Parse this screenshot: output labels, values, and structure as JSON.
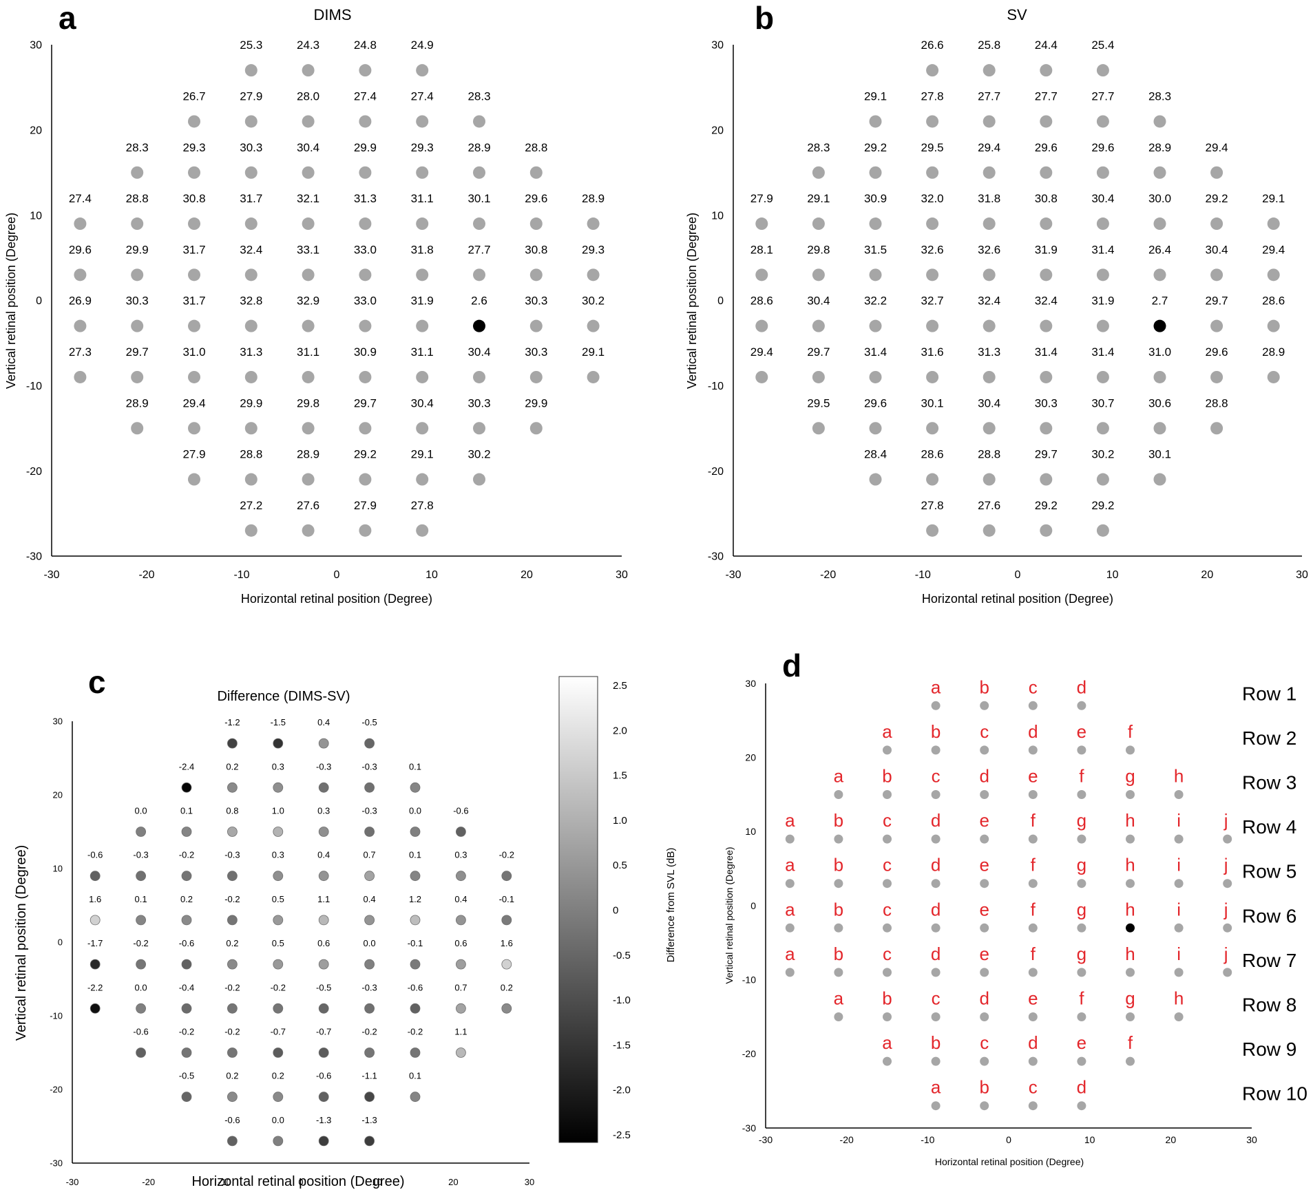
{
  "colors": {
    "dot": "#a6a6a6",
    "blind_spot": "#000000",
    "axis": "#000000",
    "row_letter": "#e3262b"
  },
  "chart_data": [
    {
      "panel": "a",
      "type": "scatter",
      "title": "DIMS",
      "xlabel": "Horizontal retinal position (Degree)",
      "ylabel": "Vertical retinal position (Degree)",
      "xlim": [
        -30,
        30
      ],
      "ylim": [
        -30,
        30
      ],
      "xticks": [
        "-30",
        "-20",
        "-10",
        "0",
        "10",
        "20",
        "30"
      ],
      "yticks": [
        "30",
        "20",
        "10",
        "0",
        "-10",
        "-20",
        "-30"
      ],
      "blind_spot": [
        15,
        -3
      ],
      "rows": [
        {
          "y": 27,
          "x": [
            -9,
            -3,
            3,
            9
          ],
          "values": [
            "25.3",
            "24.3",
            "24.8",
            "24.9"
          ]
        },
        {
          "y": 21,
          "x": [
            -15,
            -9,
            -3,
            3,
            9,
            15
          ],
          "values": [
            "26.7",
            "27.9",
            "28.0",
            "27.4",
            "27.4",
            "28.3"
          ]
        },
        {
          "y": 15,
          "x": [
            -21,
            -15,
            -9,
            -3,
            3,
            9,
            15,
            21
          ],
          "values": [
            "28.3",
            "29.3",
            "30.3",
            "30.4",
            "29.9",
            "29.3",
            "28.9",
            "28.8"
          ]
        },
        {
          "y": 9,
          "x": [
            -27,
            -21,
            -15,
            -9,
            -3,
            3,
            9,
            15,
            21,
            27
          ],
          "values": [
            "27.4",
            "28.8",
            "30.8",
            "31.7",
            "32.1",
            "31.3",
            "31.1",
            "30.1",
            "29.6",
            "28.9"
          ]
        },
        {
          "y": 3,
          "x": [
            -27,
            -21,
            -15,
            -9,
            -3,
            3,
            9,
            15,
            21,
            27
          ],
          "values": [
            "29.6",
            "29.9",
            "31.7",
            "32.4",
            "33.1",
            "33.0",
            "31.8",
            "27.7",
            "30.8",
            "29.3"
          ]
        },
        {
          "y": -3,
          "x": [
            -27,
            -21,
            -15,
            -9,
            -3,
            3,
            9,
            15,
            21,
            27
          ],
          "values": [
            "26.9",
            "30.3",
            "31.7",
            "32.8",
            "32.9",
            "33.0",
            "31.9",
            "2.6",
            "30.3",
            "30.2"
          ]
        },
        {
          "y": -9,
          "x": [
            -27,
            -21,
            -15,
            -9,
            -3,
            3,
            9,
            15,
            21,
            27
          ],
          "values": [
            "27.3",
            "29.7",
            "31.0",
            "31.3",
            "31.1",
            "30.9",
            "31.1",
            "30.4",
            "30.3",
            "29.1"
          ]
        },
        {
          "y": -15,
          "x": [
            -21,
            -15,
            -9,
            -3,
            3,
            9,
            15,
            21
          ],
          "values": [
            "28.9",
            "29.4",
            "29.9",
            "29.8",
            "29.7",
            "30.4",
            "30.3",
            "29.9"
          ]
        },
        {
          "y": -21,
          "x": [
            -15,
            -9,
            -3,
            3,
            9,
            15
          ],
          "values": [
            "27.9",
            "28.8",
            "28.9",
            "29.2",
            "29.1",
            "30.2"
          ]
        },
        {
          "y": -27,
          "x": [
            -9,
            -3,
            3,
            9
          ],
          "values": [
            "27.2",
            "27.6",
            "27.9",
            "27.8"
          ]
        }
      ]
    },
    {
      "panel": "b",
      "type": "scatter",
      "title": "SV",
      "xlabel": "Horizontal retinal position (Degree)",
      "ylabel": "Vertical retinal position (Degree)",
      "xlim": [
        -30,
        30
      ],
      "ylim": [
        -30,
        30
      ],
      "xticks": [
        "-30",
        "-20",
        "-10",
        "0",
        "10",
        "20",
        "30"
      ],
      "yticks": [
        "30",
        "20",
        "10",
        "0",
        "-10",
        "-20",
        "-30"
      ],
      "blind_spot": [
        15,
        -3
      ],
      "rows": [
        {
          "y": 27,
          "x": [
            -9,
            -3,
            3,
            9
          ],
          "values": [
            "26.6",
            "25.8",
            "24.4",
            "25.4"
          ]
        },
        {
          "y": 21,
          "x": [
            -15,
            -9,
            -3,
            3,
            9,
            15
          ],
          "values": [
            "29.1",
            "27.8",
            "27.7",
            "27.7",
            "27.7",
            "28.3"
          ]
        },
        {
          "y": 15,
          "x": [
            -21,
            -15,
            -9,
            -3,
            3,
            9,
            15,
            21
          ],
          "values": [
            "28.3",
            "29.2",
            "29.5",
            "29.4",
            "29.6",
            "29.6",
            "28.9",
            "29.4"
          ]
        },
        {
          "y": 9,
          "x": [
            -27,
            -21,
            -15,
            -9,
            -3,
            3,
            9,
            15,
            21,
            27
          ],
          "values": [
            "27.9",
            "29.1",
            "30.9",
            "32.0",
            "31.8",
            "30.8",
            "30.4",
            "30.0",
            "29.2",
            "29.1"
          ]
        },
        {
          "y": 3,
          "x": [
            -27,
            -21,
            -15,
            -9,
            -3,
            3,
            9,
            15,
            21,
            27
          ],
          "values": [
            "28.1",
            "29.8",
            "31.5",
            "32.6",
            "32.6",
            "31.9",
            "31.4",
            "26.4",
            "30.4",
            "29.4"
          ]
        },
        {
          "y": -3,
          "x": [
            -27,
            -21,
            -15,
            -9,
            -3,
            3,
            9,
            15,
            21,
            27
          ],
          "values": [
            "28.6",
            "30.4",
            "32.2",
            "32.7",
            "32.4",
            "32.4",
            "31.9",
            "2.7",
            "29.7",
            "28.6"
          ]
        },
        {
          "y": -9,
          "x": [
            -27,
            -21,
            -15,
            -9,
            -3,
            3,
            9,
            15,
            21,
            27
          ],
          "values": [
            "29.4",
            "29.7",
            "31.4",
            "31.6",
            "31.3",
            "31.4",
            "31.4",
            "31.0",
            "29.6",
            "28.9"
          ]
        },
        {
          "y": -15,
          "x": [
            -21,
            -15,
            -9,
            -3,
            3,
            9,
            15,
            21
          ],
          "values": [
            "29.5",
            "29.6",
            "30.1",
            "30.4",
            "30.3",
            "30.7",
            "30.6",
            "28.8"
          ]
        },
        {
          "y": -21,
          "x": [
            -15,
            -9,
            -3,
            3,
            9,
            15
          ],
          "values": [
            "28.4",
            "28.6",
            "28.8",
            "29.7",
            "30.2",
            "30.1"
          ]
        },
        {
          "y": -27,
          "x": [
            -9,
            -3,
            3,
            9
          ],
          "values": [
            "27.8",
            "27.6",
            "29.2",
            "29.2"
          ]
        }
      ]
    },
    {
      "panel": "c",
      "type": "heatmap",
      "title": "Difference (DIMS-SV)",
      "xlabel": "Horizontal retinal position (Degree)",
      "ylabel": "Vertical retinal position (Degree)",
      "xlim": [
        -30,
        30
      ],
      "ylim": [
        -30,
        30
      ],
      "xticks": [
        "-30",
        "-20",
        "-10",
        "0",
        "10",
        "20",
        "30"
      ],
      "yticks": [
        "30",
        "20",
        "10",
        "0",
        "-10",
        "-20",
        "-30"
      ],
      "colorbar_label": "Difference from SVL (dB)",
      "colorbar_range": [
        -2.5,
        2.5
      ],
      "colorbar_ticks": [
        "2.5",
        "2.0",
        "1.5",
        "1.0",
        "0.5",
        "0",
        "-0.5",
        "-1.0",
        "-1.5",
        "-2.0",
        "-2.5"
      ],
      "rows": [
        {
          "y": 27,
          "x": [
            -9,
            -3,
            3,
            9
          ],
          "values": [
            "-1.2",
            "-1.5",
            "0.4",
            "-0.5"
          ]
        },
        {
          "y": 21,
          "x": [
            -15,
            -9,
            -3,
            3,
            9,
            15
          ],
          "values": [
            "-2.4",
            "0.2",
            "0.3",
            "-0.3",
            "-0.3",
            "0.1"
          ]
        },
        {
          "y": 15,
          "x": [
            -21,
            -15,
            -9,
            -3,
            3,
            9,
            15,
            21
          ],
          "values": [
            "0.0",
            "0.1",
            "0.8",
            "1.0",
            "0.3",
            "-0.3",
            "0.0",
            "-0.6"
          ]
        },
        {
          "y": 9,
          "x": [
            -27,
            -21,
            -15,
            -9,
            -3,
            3,
            9,
            15,
            21,
            27
          ],
          "values": [
            "-0.6",
            "-0.3",
            "-0.2",
            "-0.3",
            "0.3",
            "0.4",
            "0.7",
            "0.1",
            "0.3",
            "-0.2"
          ]
        },
        {
          "y": 3,
          "x": [
            -27,
            -21,
            -15,
            -9,
            -3,
            3,
            9,
            15,
            21,
            27
          ],
          "values": [
            "1.6",
            "0.1",
            "0.2",
            "-0.2",
            "0.5",
            "1.1",
            "0.4",
            "1.2",
            "0.4",
            "-0.1"
          ]
        },
        {
          "y": -3,
          "x": [
            -27,
            -21,
            -15,
            -9,
            -3,
            3,
            9,
            15,
            21,
            27
          ],
          "values": [
            "-1.7",
            "-0.2",
            "-0.6",
            "0.2",
            "0.5",
            "0.6",
            "0.0",
            "-0.1",
            "0.6",
            "1.6"
          ]
        },
        {
          "y": -9,
          "x": [
            -27,
            -21,
            -15,
            -9,
            -3,
            3,
            9,
            15,
            21,
            27
          ],
          "values": [
            "-2.2",
            "0.0",
            "-0.4",
            "-0.2",
            "-0.2",
            "-0.5",
            "-0.3",
            "-0.6",
            "0.7",
            "0.2"
          ]
        },
        {
          "y": -15,
          "x": [
            -21,
            -15,
            -9,
            -3,
            3,
            9,
            15,
            21
          ],
          "values": [
            "-0.6",
            "-0.2",
            "-0.2",
            "-0.7",
            "-0.7",
            "-0.2",
            "-0.2",
            "1.1"
          ]
        },
        {
          "y": -21,
          "x": [
            -15,
            -9,
            -3,
            3,
            9,
            15
          ],
          "values": [
            "-0.5",
            "0.2",
            "0.2",
            "-0.6",
            "-1.1",
            "0.1"
          ]
        },
        {
          "y": -27,
          "x": [
            -9,
            -3,
            3,
            9
          ],
          "values": [
            "-0.6",
            "0.0",
            "-1.3",
            "-1.3"
          ]
        }
      ]
    },
    {
      "panel": "d",
      "type": "scatter",
      "title": "",
      "xlabel": "Horizontal retinal position (Degree)",
      "ylabel": "Vertical retinal position (Degree)",
      "xlim": [
        -30,
        30
      ],
      "ylim": [
        -30,
        30
      ],
      "xticks": [
        "-30",
        "-20",
        "-10",
        "0",
        "10",
        "20",
        "30"
      ],
      "yticks": [
        "30",
        "20",
        "10",
        "0",
        "-10",
        "-20",
        "-30"
      ],
      "blind_spot": [
        15,
        -3
      ],
      "rows": [
        {
          "y": 27,
          "name": "Row 1",
          "x": [
            -9,
            -3,
            3,
            9
          ],
          "labels": [
            "a",
            "b",
            "c",
            "d"
          ]
        },
        {
          "y": 21,
          "name": "Row 2",
          "x": [
            -15,
            -9,
            -3,
            3,
            9,
            15
          ],
          "labels": [
            "a",
            "b",
            "c",
            "d",
            "e",
            "f"
          ]
        },
        {
          "y": 15,
          "name": "Row 3",
          "x": [
            -21,
            -15,
            -9,
            -3,
            3,
            9,
            15,
            21
          ],
          "labels": [
            "a",
            "b",
            "c",
            "d",
            "e",
            "f",
            "g",
            "h"
          ]
        },
        {
          "y": 9,
          "name": "Row 4",
          "x": [
            -27,
            -21,
            -15,
            -9,
            -3,
            3,
            9,
            15,
            21,
            27
          ],
          "labels": [
            "a",
            "b",
            "c",
            "d",
            "e",
            "f",
            "g",
            "h",
            "i",
            "j"
          ]
        },
        {
          "y": 3,
          "name": "Row 5",
          "x": [
            -27,
            -21,
            -15,
            -9,
            -3,
            3,
            9,
            15,
            21,
            27
          ],
          "labels": [
            "a",
            "b",
            "c",
            "d",
            "e",
            "f",
            "g",
            "h",
            "i",
            "j"
          ]
        },
        {
          "y": -3,
          "name": "Row 6",
          "x": [
            -27,
            -21,
            -15,
            -9,
            -3,
            3,
            9,
            15,
            21,
            27
          ],
          "labels": [
            "a",
            "b",
            "c",
            "d",
            "e",
            "f",
            "g",
            "h",
            "i",
            "j"
          ]
        },
        {
          "y": -9,
          "name": "Row 7",
          "x": [
            -27,
            -21,
            -15,
            -9,
            -3,
            3,
            9,
            15,
            21,
            27
          ],
          "labels": [
            "a",
            "b",
            "c",
            "d",
            "e",
            "f",
            "g",
            "h",
            "i",
            "j"
          ]
        },
        {
          "y": -15,
          "name": "Row 8",
          "x": [
            -21,
            -15,
            -9,
            -3,
            3,
            9,
            15,
            21
          ],
          "labels": [
            "a",
            "b",
            "c",
            "d",
            "e",
            "f",
            "g",
            "h"
          ]
        },
        {
          "y": -21,
          "name": "Row 9",
          "x": [
            -15,
            -9,
            -3,
            3,
            9,
            15
          ],
          "labels": [
            "a",
            "b",
            "c",
            "d",
            "e",
            "f"
          ]
        },
        {
          "y": -27,
          "name": "Row 10",
          "x": [
            -9,
            -3,
            3,
            9
          ],
          "labels": [
            "a",
            "b",
            "c",
            "d"
          ]
        }
      ]
    }
  ]
}
